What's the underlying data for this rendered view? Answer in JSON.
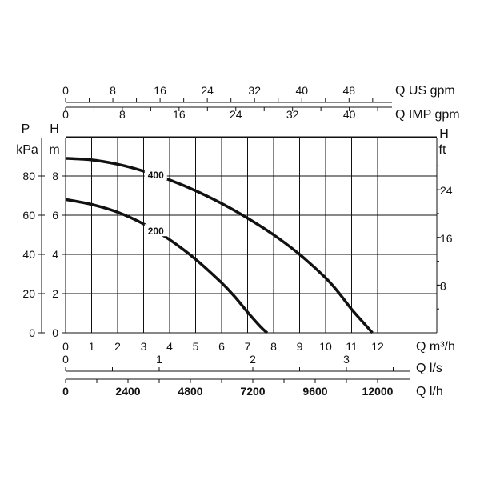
{
  "chart_data": {
    "type": "line",
    "grid": true,
    "x_primary": {
      "unit_label": "Q m³/h",
      "range": [
        0,
        12
      ],
      "ticks": [
        "0",
        "1",
        "2",
        "3",
        "4",
        "5",
        "6",
        "7",
        "8",
        "9",
        "10",
        "11",
        "12"
      ]
    },
    "y_left_H": {
      "title": "H",
      "unit": "m",
      "range": [
        0,
        10
      ],
      "ticks": [
        "0",
        "2",
        "4",
        "6",
        "8"
      ]
    },
    "y_left_P": {
      "title": "P",
      "unit": "kPa",
      "ticks": [
        "0",
        "20",
        "40",
        "60",
        "80"
      ]
    },
    "y_right_H": {
      "title": "H",
      "unit": "ft",
      "ticks": [
        "8",
        "16",
        "24"
      ]
    },
    "top_axis_us": {
      "label": "Q US gpm",
      "ticks": [
        "0",
        "8",
        "16",
        "24",
        "32",
        "40",
        "48"
      ]
    },
    "top_axis_imp": {
      "label": "Q IMP gpm",
      "ticks": [
        "0",
        "8",
        "16",
        "24",
        "32",
        "40"
      ]
    },
    "bottom_axis_ls": {
      "label": "Q l/s",
      "ticks": [
        "0",
        "1",
        "2",
        "3"
      ]
    },
    "bottom_axis_lh": {
      "label": "Q l/h",
      "ticks": [
        "0",
        "2400",
        "4800",
        "7200",
        "9600",
        "12000"
      ]
    },
    "series": [
      {
        "name": "400",
        "x": [
          0,
          1,
          2,
          3,
          4,
          5,
          6,
          7,
          8,
          9,
          10,
          10.5,
          11,
          11.5,
          11.8
        ],
        "y": [
          8.9,
          8.82,
          8.6,
          8.25,
          7.8,
          7.25,
          6.6,
          5.85,
          5.0,
          4.0,
          2.8,
          2.05,
          1.2,
          0.45,
          0
        ]
      },
      {
        "name": "200",
        "x": [
          0,
          1,
          2,
          3,
          4,
          5,
          6,
          6.5,
          7,
          7.5,
          7.75
        ],
        "y": [
          6.8,
          6.55,
          6.15,
          5.55,
          4.75,
          3.75,
          2.55,
          1.85,
          1.05,
          0.3,
          0
        ]
      }
    ]
  }
}
